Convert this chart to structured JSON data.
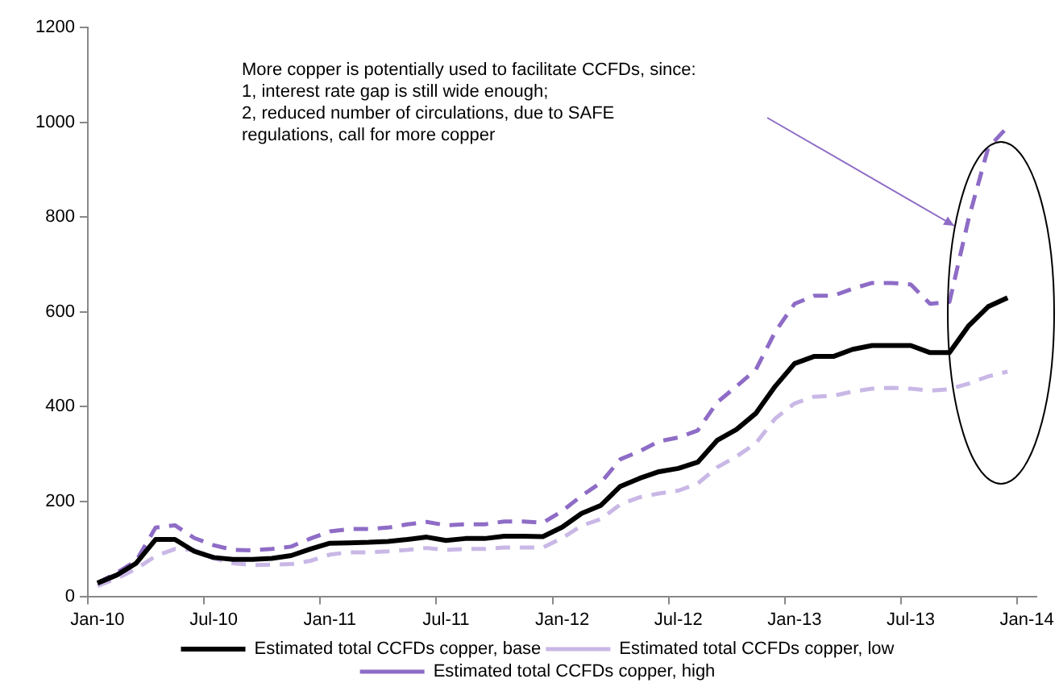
{
  "chart_data": {
    "type": "line",
    "categories": [
      "Jan-10",
      null,
      null,
      null,
      null,
      null,
      "Jul-10",
      null,
      null,
      null,
      null,
      null,
      "Jan-11",
      null,
      null,
      null,
      null,
      null,
      "Jul-11",
      null,
      null,
      null,
      null,
      null,
      "Jan-12",
      null,
      null,
      null,
      null,
      null,
      "Jul-12",
      null,
      null,
      null,
      null,
      null,
      "Jan-13",
      null,
      null,
      null,
      null,
      null,
      "Jul-13",
      null,
      null,
      null,
      null,
      null,
      "Jan-14"
    ],
    "series": [
      {
        "name": "Estimated total CCFDs copper, base",
        "color": "#000000",
        "line_style": "solid",
        "values": [
          28,
          45,
          70,
          120,
          120,
          95,
          82,
          78,
          78,
          80,
          86,
          100,
          112,
          113,
          114,
          116,
          120,
          125,
          118,
          122,
          122,
          127,
          127,
          126,
          146,
          175,
          192,
          232,
          249,
          263,
          270,
          283,
          329,
          352,
          386,
          443,
          491,
          506,
          506,
          521,
          529,
          529,
          529,
          514,
          514,
          571,
          611,
          630,
          null
        ]
      },
      {
        "name": "Estimated total CCFDs copper, low",
        "color": "#c9b8e6",
        "line_style": "dashed",
        "values": [
          22,
          38,
          58,
          85,
          100,
          98,
          80,
          70,
          66,
          67,
          68,
          75,
          88,
          93,
          93,
          95,
          98,
          102,
          98,
          100,
          100,
          103,
          103,
          103,
          123,
          149,
          163,
          194,
          209,
          217,
          223,
          238,
          272,
          295,
          323,
          375,
          407,
          421,
          423,
          432,
          438,
          440,
          438,
          434,
          437,
          449,
          464,
          474,
          null
        ]
      },
      {
        "name": "Estimated total CCFDs copper, high",
        "color": "#8e6cc6",
        "line_style": "dashed",
        "values": [
          28,
          50,
          75,
          145,
          150,
          123,
          108,
          98,
          97,
          100,
          105,
          122,
          137,
          142,
          142,
          145,
          152,
          157,
          150,
          152,
          152,
          158,
          158,
          155,
          180,
          212,
          240,
          289,
          306,
          327,
          335,
          350,
          409,
          443,
          478,
          558,
          617,
          634,
          634,
          649,
          661,
          661,
          658,
          617,
          621,
          798,
          946,
          990,
          null
        ]
      }
    ],
    "ylim": [
      0,
      1200
    ],
    "yticks": [
      0,
      200,
      400,
      600,
      800,
      1000,
      1200
    ],
    "grid": false,
    "legend": "bottom",
    "marker": "none",
    "annotations": [
      "More copper is potentially used to facilitate CCFDs, since:\n1, interest rate gap is still wide enough;\n2, reduced number of circulations, due to SAFE\nregulations, call for more copper"
    ]
  }
}
